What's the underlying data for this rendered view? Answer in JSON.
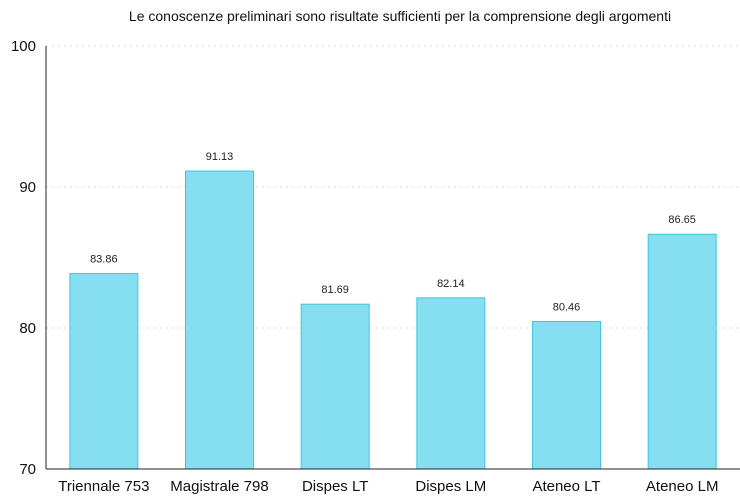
{
  "chart_data": {
    "type": "bar",
    "title": "Le conoscenze preliminari sono risultate sufficienti per la comprensione degli argomenti",
    "categories": [
      "Triennale 753",
      "Magistrale 798",
      "Dispes LT",
      "Dispes LM",
      "Ateneo LT",
      "Ateneo LM"
    ],
    "values": [
      83.86,
      91.13,
      81.69,
      82.14,
      80.46,
      86.65
    ],
    "value_labels": [
      "83.86",
      "91.13",
      "81.69",
      "82.14",
      "80.46",
      "86.65"
    ],
    "yticks": [
      "70",
      "80",
      "90",
      "100"
    ],
    "ytick_values": [
      70,
      80,
      90,
      100
    ],
    "ylim": [
      70,
      100
    ],
    "xlabel": "",
    "ylabel": "",
    "grid": true,
    "legend": "none",
    "colors": {
      "bar_fill": "#86dff0",
      "bar_stroke": "#3fc3e0",
      "grid": "#d8d8d8",
      "axis": "#222222"
    }
  }
}
